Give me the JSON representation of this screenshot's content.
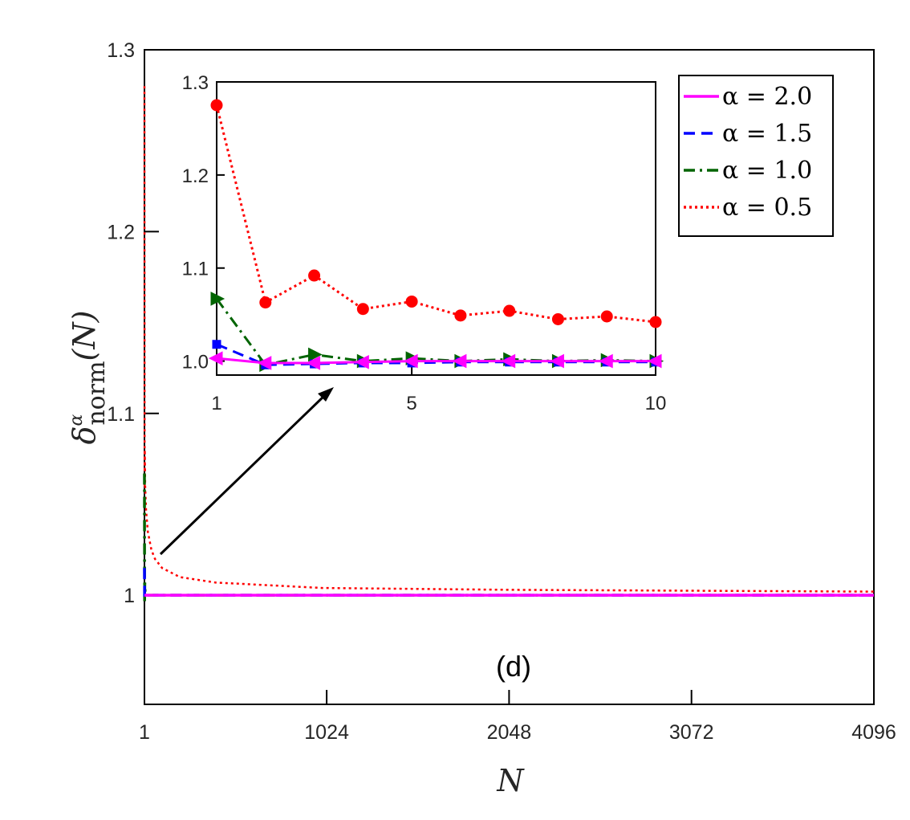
{
  "chart_data": [
    {
      "id": "main",
      "type": "line",
      "xlabel": "N",
      "ylabel_base": "δ",
      "ylabel_sup": "α",
      "ylabel_sub": "norm",
      "ylabel_arg": "(N)",
      "xlim": [
        1,
        4096
      ],
      "ylim": [
        0.94,
        1.3
      ],
      "xticks": [
        1,
        1024,
        2048,
        3072,
        4096
      ],
      "xtick_labels": [
        "1",
        "1024",
        "2048",
        "3072",
        "4096"
      ],
      "yticks": [
        1.0,
        1.1,
        1.2,
        1.3
      ],
      "ytick_labels": [
        "1",
        "1.1",
        "1.2",
        "1.3"
      ],
      "panel_label": "(d)",
      "series": [
        {
          "name": "α = 2.0",
          "color": "#ff00ff",
          "dash": "solid",
          "x": [
            1,
            2,
            3,
            5,
            10,
            50,
            4096
          ],
          "y": [
            1.0,
            1.0,
            1.0,
            1.0,
            1.0,
            1.0,
            1.0
          ]
        },
        {
          "name": "α = 1.5",
          "color": "#0000ff",
          "dash": "dashed",
          "x": [
            1,
            2,
            3,
            5,
            10,
            50,
            4096
          ],
          "y": [
            1.015,
            1.0,
            1.0,
            1.0,
            1.0,
            1.0,
            1.0
          ]
        },
        {
          "name": "α = 1.0",
          "color": "#006400",
          "dash": "dashdot",
          "x": [
            1,
            2,
            3,
            5,
            10,
            50,
            4096
          ],
          "y": [
            1.067,
            0.996,
            1.007,
            1.002,
            1.0,
            1.0,
            1.0
          ]
        },
        {
          "name": "α = 0.5",
          "color": "#ff0000",
          "dash": "dotted",
          "x": [
            1,
            2,
            3,
            5,
            10,
            20,
            40,
            60,
            100,
            200,
            400,
            1000,
            2048,
            4096
          ],
          "y": [
            1.28,
            1.06,
            1.08,
            1.06,
            1.047,
            1.035,
            1.025,
            1.02,
            1.015,
            1.01,
            1.007,
            1.004,
            1.003,
            1.002
          ]
        }
      ]
    },
    {
      "id": "inset",
      "type": "line",
      "xlim": [
        1,
        10
      ],
      "ylim": [
        0.985,
        1.3
      ],
      "xticks": [
        1,
        5,
        10
      ],
      "xtick_labels": [
        "1",
        "5",
        "10"
      ],
      "yticks": [
        1.0,
        1.1,
        1.2,
        1.3
      ],
      "ytick_labels": [
        "1.0",
        "1.1",
        "1.2",
        "1.3"
      ],
      "series": [
        {
          "name": "α = 2.0",
          "color": "#ff00ff",
          "dash": "solid",
          "marker": "triangle-left",
          "x": [
            1,
            2,
            3,
            4,
            5,
            6,
            7,
            8,
            9,
            10
          ],
          "y": [
            1.003,
            0.998,
            0.998,
            0.999,
            1.0,
            1.0,
            1.0,
            1.0,
            1.0,
            1.0
          ]
        },
        {
          "name": "α = 1.5",
          "color": "#0000ff",
          "dash": "dashed",
          "marker": "square",
          "x": [
            1,
            2,
            3,
            4,
            5,
            6,
            7,
            8,
            9,
            10
          ],
          "y": [
            1.018,
            0.996,
            0.997,
            0.998,
            0.998,
            0.999,
            0.999,
            0.999,
            0.999,
            0.999
          ]
        },
        {
          "name": "α = 1.0",
          "color": "#006400",
          "dash": "dashdot",
          "marker": "triangle-right",
          "x": [
            1,
            2,
            3,
            4,
            5,
            6,
            7,
            8,
            9,
            10
          ],
          "y": [
            1.067,
            0.996,
            1.007,
            1.0,
            1.003,
            1.0,
            1.002,
            1.0,
            1.001,
            1.0
          ]
        },
        {
          "name": "α = 0.5",
          "color": "#ff0000",
          "dash": "dotted",
          "marker": "circle",
          "x": [
            1,
            2,
            3,
            4,
            5,
            6,
            7,
            8,
            9,
            10
          ],
          "y": [
            1.275,
            1.063,
            1.092,
            1.056,
            1.064,
            1.049,
            1.054,
            1.045,
            1.048,
            1.042
          ]
        }
      ]
    }
  ],
  "legend": {
    "entries": [
      {
        "label": "α = 2.0",
        "color": "#ff00ff",
        "dash": "solid"
      },
      {
        "label": "α = 1.5",
        "color": "#0000ff",
        "dash": "dashed"
      },
      {
        "label": "α = 1.0",
        "color": "#006400",
        "dash": "dashdot"
      },
      {
        "label": "α = 0.5",
        "color": "#ff0000",
        "dash": "dotted"
      }
    ],
    "placement": "top-right"
  }
}
